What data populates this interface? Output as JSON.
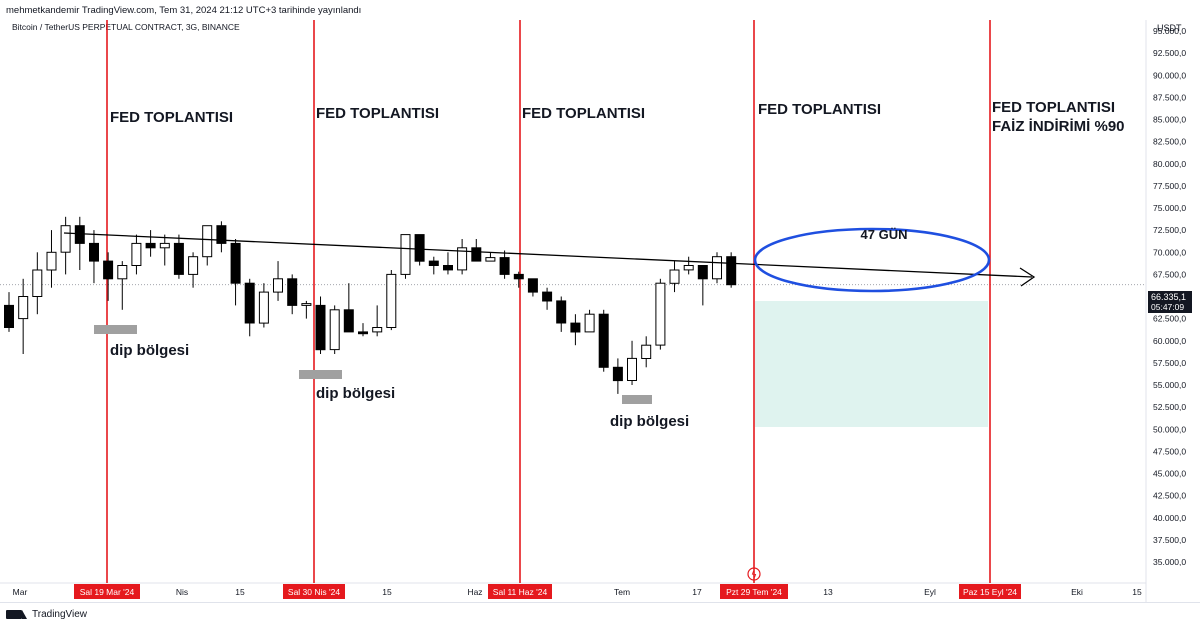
{
  "publish_line": "mehmetkandemir TradingView.com, Tem 31, 2024 21:12 UTC+3 tarihinde yayınlandı",
  "footer_brand": "TradingView",
  "chart_data": {
    "type": "candlestick",
    "symbol_line": "Bitcoin / TetherUS PERPETUAL CONTRACT, 3G, BINANCE",
    "currency": "USDT",
    "ylim": [
      33000,
      97500
    ],
    "y_ticks": [
      "95.000,0",
      "92.500,0",
      "90.000,0",
      "87.500,0",
      "85.000,0",
      "82.500,0",
      "80.000,0",
      "77.500,0",
      "75.000,0",
      "72.500,0",
      "70.000,0",
      "67.500,0",
      "65.000,0",
      "62.500,0",
      "60.000,0",
      "57.500,0",
      "55.000,0",
      "52.500,0",
      "50.000,0",
      "47.500,0",
      "45.000,0",
      "42.500,0",
      "40.000,0",
      "37.500,0",
      "35.000,0"
    ],
    "x_ticks": [
      "Mar",
      "Nis",
      "15",
      "15",
      "Haz",
      "Tem",
      "17",
      "13",
      "Eyl",
      "Eki",
      "15"
    ],
    "date_markers": [
      "Sal 19 Mar '24",
      "Sal 30 Nis '24",
      "Sal 11 Haz '24",
      "Pzt 29 Tem '24",
      "Paz 15 Eyl '24"
    ],
    "last_price": "66.335,1",
    "countdown": "05:47:09",
    "candles": [
      [
        64000,
        65500,
        61000,
        61500
      ],
      [
        62500,
        67000,
        58500,
        65000
      ],
      [
        65000,
        70000,
        63000,
        68000
      ],
      [
        68000,
        72500,
        66000,
        70000
      ],
      [
        70000,
        74000,
        67500,
        73000
      ],
      [
        73000,
        74000,
        68000,
        71000
      ],
      [
        71000,
        72500,
        66500,
        69000
      ],
      [
        69000,
        70000,
        64500,
        67000
      ],
      [
        67000,
        69000,
        63500,
        68500
      ],
      [
        68500,
        72000,
        67500,
        71000
      ],
      [
        71000,
        72500,
        69500,
        70500
      ],
      [
        70500,
        72000,
        68500,
        71000
      ],
      [
        71000,
        72000,
        67000,
        67500
      ],
      [
        67500,
        70000,
        66000,
        69500
      ],
      [
        69500,
        73000,
        68500,
        73000
      ],
      [
        73000,
        73500,
        70000,
        71000
      ],
      [
        71000,
        71500,
        64000,
        66500
      ],
      [
        66500,
        67000,
        60500,
        62000
      ],
      [
        62000,
        66500,
        61500,
        65500
      ],
      [
        65500,
        69000,
        64500,
        67000
      ],
      [
        67000,
        67500,
        63000,
        64000
      ],
      [
        64000,
        64500,
        62500,
        64200
      ],
      [
        64000,
        65000,
        58500,
        59000
      ],
      [
        59000,
        64000,
        58500,
        63500
      ],
      [
        63500,
        66500,
        61000,
        61000
      ],
      [
        61000,
        62000,
        60500,
        60800
      ],
      [
        61000,
        64000,
        60500,
        61500
      ],
      [
        61500,
        68000,
        61200,
        67500
      ],
      [
        67500,
        72000,
        67000,
        72000
      ],
      [
        72000,
        72000,
        68500,
        69000
      ],
      [
        69000,
        69500,
        67500,
        68500
      ],
      [
        68500,
        70000,
        67500,
        68000
      ],
      [
        68000,
        71500,
        67500,
        70500
      ],
      [
        70500,
        71500,
        69000,
        69000
      ],
      [
        69000,
        70000,
        69000,
        69400
      ],
      [
        69400,
        70200,
        67000,
        67500
      ],
      [
        67500,
        67800,
        66000,
        67000
      ],
      [
        67000,
        67000,
        65000,
        65500
      ],
      [
        65500,
        66000,
        63500,
        64500
      ],
      [
        64500,
        65000,
        61000,
        62000
      ],
      [
        62000,
        63000,
        59500,
        61000
      ],
      [
        61000,
        63500,
        61000,
        63000
      ],
      [
        63000,
        63500,
        56500,
        57000
      ],
      [
        57000,
        58000,
        54000,
        55500
      ],
      [
        55500,
        60000,
        55000,
        58000
      ],
      [
        58000,
        60500,
        57000,
        59500
      ],
      [
        59500,
        67000,
        59000,
        66500
      ],
      [
        66500,
        69000,
        65500,
        68000
      ],
      [
        68000,
        69500,
        67500,
        68500
      ],
      [
        68500,
        68500,
        64000,
        67000
      ],
      [
        67000,
        70000,
        66500,
        69500
      ],
      [
        69500,
        70000,
        66000,
        66335
      ]
    ]
  },
  "annotations": {
    "fed1": "FED TOPLANTISI",
    "fed2": "FED TOPLANTISI",
    "fed3": "FED TOPLANTISI",
    "fed4": "FED TOPLANTISI",
    "fed5_line1": "FED TOPLANTISI",
    "fed5_line2": "FAİZ İNDİRİMİ %90",
    "dip1": "dip bölgesi",
    "dip2": "dip bölgesi",
    "dip3": "dip bölgesi",
    "days": "47 GÜN"
  },
  "colors": {
    "up_body": "#ffffff",
    "down_body": "#000000",
    "wick": "#000000",
    "vline": "#e5191e",
    "date_label_bg": "#e5191e",
    "ellipse": "#1f4fe0",
    "zone_fill": "#dff3ef",
    "dip_mark": "#a0a0a0",
    "trend": "#000000"
  }
}
